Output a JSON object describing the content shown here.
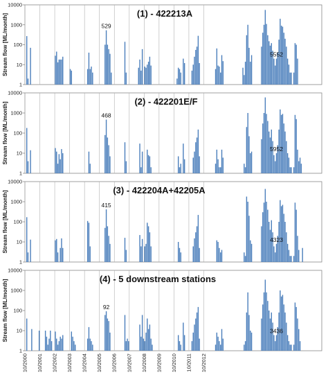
{
  "chart_data": {
    "type": "bar",
    "y_scale": "log",
    "ylim": [
      1,
      10000
    ],
    "ylabel": "Stream flow [ML/month]",
    "yticks": [
      "1",
      "10",
      "100",
      "1000",
      "10000"
    ],
    "x_tick_labels": [
      "10/2000",
      "10/2001",
      "10/2002",
      "10/2003",
      "10/2004",
      "10/2005",
      "10/2006",
      "10/2007",
      "10/2008",
      "10/2009",
      "10/2010",
      "10/2011",
      "10/2012"
    ],
    "bar_color": "#4a7ebb",
    "grid": "vertical at each October",
    "panels": [
      {
        "title": "(1) - 422213A",
        "peak_label": "5552",
        "second_label": "529",
        "values": [
          1,
          270,
          2,
          1,
          70,
          1,
          1,
          1,
          1,
          1,
          1,
          1,
          1,
          1,
          1,
          1,
          1,
          1,
          1,
          1,
          1,
          1,
          1,
          1,
          28,
          45,
          13,
          18,
          18,
          18,
          25,
          1,
          1,
          1,
          1,
          1,
          6,
          5,
          1,
          1,
          1,
          1,
          1,
          1,
          1,
          1,
          1,
          1,
          1,
          1,
          6,
          40,
          6,
          8,
          4,
          1,
          1,
          1,
          1,
          1,
          1,
          1,
          1,
          1,
          100,
          529,
          100,
          60,
          35,
          4,
          1,
          1,
          1,
          1,
          1,
          1,
          1,
          1,
          1,
          1,
          140,
          4,
          1,
          1,
          1,
          1,
          1,
          1,
          1,
          1,
          1,
          7,
          18,
          5,
          60,
          1,
          8,
          7,
          10,
          14,
          25,
          9,
          1,
          1,
          1,
          1,
          1,
          1,
          1,
          1,
          1,
          1,
          1,
          1,
          1,
          1,
          1,
          1,
          1,
          1,
          1,
          1,
          2,
          7,
          6,
          4,
          1,
          20,
          12,
          1,
          1,
          1,
          1,
          1,
          5,
          10,
          25,
          55,
          80,
          280,
          12,
          1,
          1,
          1,
          1,
          1,
          1,
          1,
          1,
          1,
          1,
          1,
          1,
          6,
          65,
          9,
          8,
          4,
          30,
          15,
          1,
          1,
          1,
          1,
          1,
          1,
          1,
          1,
          1,
          1,
          1,
          1,
          1,
          1,
          1,
          7,
          3,
          14,
          300,
          1000,
          70,
          14,
          30,
          1,
          1,
          1,
          1,
          1,
          1,
          1,
          80,
          400,
          1000,
          5552,
          1100,
          300,
          150,
          90,
          120,
          50,
          20,
          9,
          20,
          40,
          180,
          2000,
          900,
          800,
          400,
          200,
          80,
          20,
          10,
          4,
          4,
          1,
          4,
          120,
          100,
          20,
          1,
          1,
          1,
          1,
          1,
          1,
          1,
          1,
          1,
          1,
          1,
          1,
          1,
          1,
          1,
          1,
          1,
          1,
          1
        ]
      },
      {
        "title": "(2) - 422201E/F",
        "peak_label": "5952",
        "second_label": "468",
        "values": [
          1,
          180,
          4,
          1,
          14,
          1,
          1,
          1,
          1,
          1,
          1,
          1,
          1,
          1,
          1,
          1,
          1,
          1,
          1,
          1,
          1,
          1,
          1,
          1,
          18,
          12,
          3,
          9,
          5,
          16,
          10,
          1,
          1,
          1,
          1,
          1,
          1,
          1,
          1,
          1,
          1,
          1,
          1,
          1,
          1,
          1,
          1,
          1,
          1,
          1,
          1,
          12,
          3,
          1,
          1,
          1,
          1,
          1,
          1,
          1,
          1,
          1,
          1,
          1,
          80,
          468,
          60,
          25,
          7,
          1,
          1,
          1,
          1,
          1,
          1,
          1,
          1,
          1,
          1,
          1,
          35,
          4,
          1,
          1,
          1,
          1,
          1,
          1,
          1,
          1,
          1,
          1,
          30,
          2,
          12,
          1,
          1,
          1,
          15,
          8,
          7,
          2,
          1,
          1,
          1,
          1,
          1,
          1,
          1,
          1,
          1,
          1,
          1,
          1,
          1,
          1,
          1,
          1,
          1,
          1,
          1,
          1,
          1,
          7,
          2,
          3,
          1,
          30,
          5,
          1,
          1,
          1,
          1,
          1,
          1,
          6,
          12,
          35,
          60,
          150,
          7,
          1,
          1,
          1,
          1,
          1,
          1,
          1,
          1,
          1,
          1,
          1,
          1,
          3,
          15,
          5,
          2,
          2,
          15,
          6,
          1,
          1,
          1,
          1,
          1,
          1,
          1,
          1,
          1,
          1,
          1,
          1,
          1,
          1,
          1,
          1,
          3,
          2,
          200,
          1000,
          70,
          10,
          12,
          1,
          1,
          1,
          1,
          1,
          1,
          1,
          50,
          300,
          1000,
          5952,
          900,
          400,
          120,
          60,
          150,
          40,
          8,
          4,
          10,
          25,
          150,
          1500,
          800,
          900,
          300,
          120,
          40,
          10,
          6,
          2,
          2,
          1,
          2,
          800,
          500,
          15,
          4,
          6,
          3,
          1,
          1,
          1,
          1,
          1,
          1,
          1,
          1,
          1,
          1,
          1,
          1,
          1,
          1,
          1,
          1
        ]
      },
      {
        "title": "(3) - 422204A+42205A",
        "peak_label": "4323",
        "second_label": "415",
        "values": [
          1,
          170,
          3,
          1,
          13,
          1,
          1,
          1,
          1,
          1,
          1,
          1,
          1,
          1,
          1,
          1,
          1,
          1,
          1,
          1,
          1,
          1,
          1,
          1,
          12,
          14,
          3,
          1,
          5,
          15,
          5,
          1,
          1,
          1,
          1,
          1,
          1,
          1,
          1,
          1,
          1,
          1,
          1,
          1,
          1,
          1,
          1,
          1,
          1,
          1,
          110,
          90,
          6,
          1,
          1,
          1,
          1,
          1,
          1,
          1,
          1,
          1,
          1,
          1,
          50,
          415,
          60,
          20,
          8,
          1,
          1,
          1,
          1,
          1,
          1,
          1,
          1,
          1,
          1,
          1,
          16,
          4,
          1,
          1,
          1,
          1,
          1,
          1,
          1,
          1,
          1,
          1,
          22,
          6,
          14,
          1,
          6,
          8,
          90,
          60,
          30,
          6,
          1,
          1,
          1,
          1,
          1,
          1,
          1,
          1,
          1,
          1,
          1,
          1,
          1,
          1,
          1,
          1,
          1,
          1,
          1,
          1,
          1,
          10,
          5,
          3,
          1,
          1,
          1,
          1,
          1,
          1,
          1,
          1,
          1,
          6,
          15,
          30,
          60,
          220,
          5,
          1,
          1,
          1,
          1,
          1,
          1,
          1,
          1,
          1,
          1,
          1,
          1,
          1,
          12,
          10,
          5,
          3,
          4,
          1,
          1,
          1,
          1,
          1,
          1,
          1,
          1,
          1,
          1,
          1,
          1,
          1,
          1,
          1,
          1,
          1,
          3,
          2,
          1800,
          1000,
          200,
          12,
          8,
          1,
          1,
          1,
          1,
          1,
          1,
          1,
          60,
          300,
          900,
          4323,
          1000,
          400,
          100,
          40,
          120,
          30,
          6,
          3,
          8,
          20,
          100,
          1200,
          600,
          700,
          250,
          100,
          30,
          8,
          4,
          2,
          2,
          1,
          2,
          900,
          400,
          20,
          4,
          1,
          1,
          5,
          1,
          1,
          1,
          1,
          1,
          1,
          1,
          1,
          1,
          1,
          1,
          1,
          1,
          1,
          1
        ]
      },
      {
        "title": "(4) - 5 downstream stations",
        "peak_label": "3436",
        "second_label": "92",
        "values": [
          1,
          40,
          1,
          1,
          1,
          12,
          1,
          1,
          1,
          1,
          1,
          10,
          1,
          1,
          1,
          1,
          10,
          5,
          2,
          4,
          10,
          3,
          1,
          1,
          9,
          4,
          2,
          3,
          5,
          4,
          6,
          1,
          1,
          1,
          1,
          1,
          1,
          9,
          5,
          3,
          2,
          1,
          1,
          1,
          1,
          1,
          1,
          1,
          1,
          1,
          4,
          15,
          4,
          3,
          2,
          1,
          1,
          1,
          1,
          1,
          1,
          1,
          1,
          1,
          60,
          92,
          40,
          30,
          8,
          1,
          1,
          1,
          1,
          1,
          1,
          1,
          1,
          1,
          1,
          1,
          60,
          3,
          4,
          3,
          1,
          1,
          1,
          1,
          1,
          1,
          1,
          1,
          20,
          5,
          60,
          4,
          3,
          8,
          40,
          12,
          20,
          4,
          2,
          1,
          1,
          1,
          1,
          1,
          1,
          1,
          1,
          1,
          1,
          1,
          1,
          1,
          1,
          1,
          1,
          1,
          1,
          1,
          1,
          6,
          3,
          2,
          1,
          25,
          6,
          1,
          1,
          1,
          1,
          1,
          3,
          8,
          20,
          40,
          80,
          150,
          4,
          1,
          1,
          1,
          1,
          1,
          1,
          1,
          1,
          1,
          1,
          1,
          1,
          2,
          8,
          5,
          3,
          2,
          12,
          4,
          1,
          1,
          1,
          1,
          1,
          1,
          1,
          1,
          1,
          1,
          1,
          1,
          1,
          1,
          1,
          1,
          2,
          3,
          80,
          800,
          60,
          10,
          8,
          1,
          1,
          1,
          1,
          1,
          1,
          1,
          40,
          200,
          800,
          3436,
          800,
          300,
          100,
          40,
          80,
          25,
          6,
          3,
          6,
          15,
          80,
          1000,
          500,
          600,
          200,
          80,
          25,
          6,
          3,
          2,
          2,
          1,
          2,
          250,
          150,
          40,
          12,
          3,
          1,
          1,
          1,
          1,
          1,
          1,
          1,
          1,
          1,
          1,
          1,
          1,
          1,
          1,
          1,
          1,
          1
        ]
      }
    ]
  }
}
